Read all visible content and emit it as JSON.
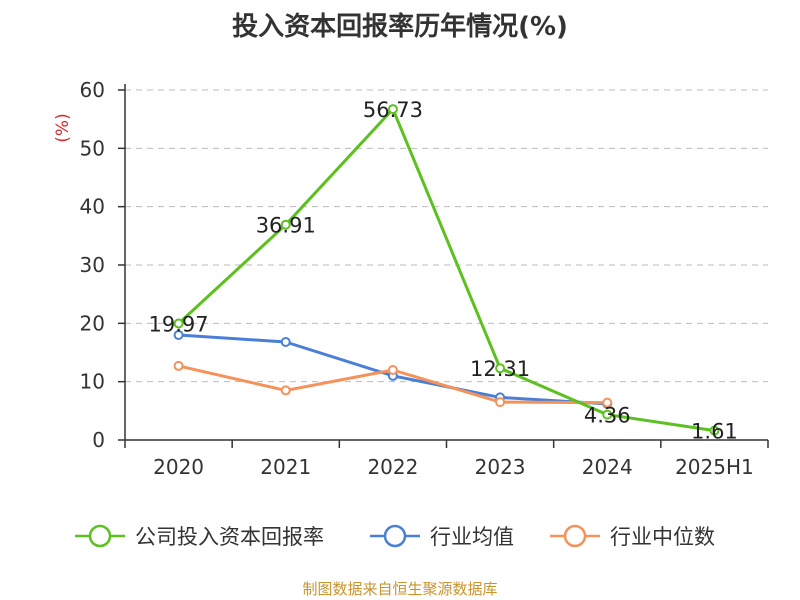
{
  "title": "投入资本回报率历年情况(%)",
  "source": "制图数据来自恒生聚源数据库",
  "colors": {
    "company": "#5cc01f",
    "industry_avg": "#4a7fd8",
    "industry_median": "#f5925a",
    "unit": "#d9262a",
    "grid": "#bbbbbb",
    "axis": "#333333"
  },
  "chart_data": {
    "type": "line",
    "title": "投入资本回报率历年情况(%)",
    "ylabel": "(%)",
    "xlabel": "",
    "categories": [
      "2020",
      "2021",
      "2022",
      "2023",
      "2024",
      "2025H1"
    ],
    "ylim": [
      0,
      60
    ],
    "yticks": [
      0,
      10,
      20,
      30,
      40,
      50,
      60
    ],
    "grid": true,
    "legend_position": "bottom",
    "series": [
      {
        "name": "公司投入资本回报率",
        "color_key": "company",
        "values": [
          19.97,
          36.91,
          56.73,
          12.31,
          4.36,
          1.61
        ],
        "labels": true
      },
      {
        "name": "行业均值",
        "color_key": "industry_avg",
        "values": [
          18.0,
          16.8,
          11.0,
          7.3,
          6.2,
          null
        ],
        "labels": false
      },
      {
        "name": "行业中位数",
        "color_key": "industry_median",
        "values": [
          12.7,
          8.5,
          12.0,
          6.5,
          6.4,
          null
        ],
        "labels": false
      }
    ]
  }
}
